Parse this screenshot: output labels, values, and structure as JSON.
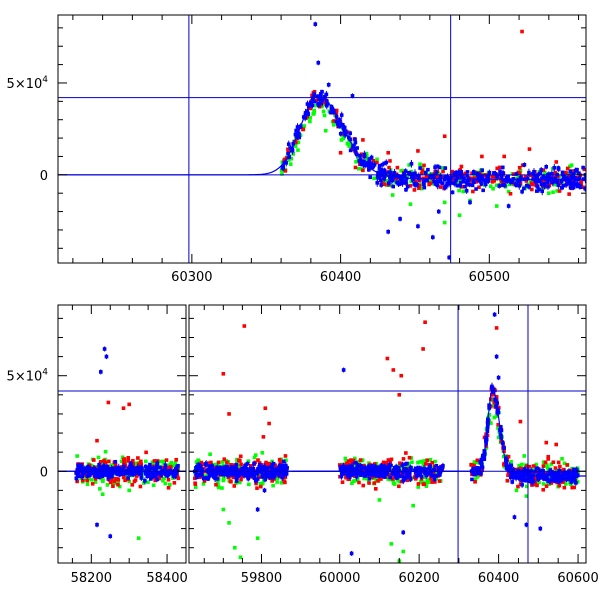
{
  "colors": {
    "red": "#ff0000",
    "green": "#00ff00",
    "blue": "#0000ff",
    "reference_lines": "#0000cc",
    "frame": "#000000"
  },
  "chart_data": [
    {
      "type": "scatter",
      "panel": "top",
      "title": "",
      "xlabel": "",
      "ylabel": "",
      "xlim": [
        60210,
        60565
      ],
      "ylim": [
        -48000,
        87000
      ],
      "x_ticks": [
        60300,
        60400,
        60500
      ],
      "y_ticks": [
        {
          "value": 0,
          "label": "0"
        },
        {
          "value": 50000,
          "label": "5×10",
          "exp": "4"
        }
      ],
      "reference_lines": {
        "vertical": [
          60298,
          60474
        ],
        "horizontal": [
          0,
          42000
        ]
      },
      "model_curve": {
        "peak_x": 60385,
        "peak_y": 43000,
        "rise_width": 12,
        "fall_width": 17,
        "tail": -2500
      },
      "series": [
        {
          "color": "red",
          "x_range": [
            60362,
            60565
          ],
          "points": [
            [
              60400,
              12000
            ],
            [
              60410,
              4000
            ],
            [
              60415,
              19000
            ],
            [
              60432,
              12000
            ],
            [
              60447,
              -6000
            ],
            [
              60452,
              13000
            ],
            [
              60470,
              21000
            ],
            [
              60475,
              -3000
            ],
            [
              60522,
              78000
            ],
            [
              60527,
              14000
            ],
            [
              60510,
              10000
            ],
            [
              60495,
              10000
            ],
            [
              60545,
              7000
            ]
          ]
        },
        {
          "color": "green",
          "x_range": [
            60360,
            60560
          ],
          "points": [
            [
              60365,
              12000
            ],
            [
              60380,
              38000
            ],
            [
              60390,
              24000
            ],
            [
              60395,
              35000
            ],
            [
              60435,
              -11000
            ],
            [
              60447,
              -16000
            ],
            [
              60470,
              -15000
            ],
            [
              60480,
              -22000
            ],
            [
              60487,
              -14000
            ],
            [
              60505,
              -17000
            ],
            [
              60470,
              -26000
            ],
            [
              60540,
              -10000
            ],
            [
              60545,
              -4000
            ]
          ]
        },
        {
          "color": "blue",
          "x_range": [
            60360,
            60565
          ],
          "points": [
            [
              60383,
              82000
            ],
            [
              60385,
              61000
            ],
            [
              60392,
              49000
            ],
            [
              60408,
              43000
            ],
            [
              60432,
              -31000
            ],
            [
              60440,
              -24000
            ],
            [
              60452,
              -28000
            ],
            [
              60462,
              -34000
            ],
            [
              60466,
              -20000
            ],
            [
              60473,
              -45000
            ],
            [
              60487,
              -15000
            ],
            [
              60513,
              -17000
            ]
          ]
        }
      ]
    },
    {
      "type": "scatter",
      "panel": "bottom",
      "title": "",
      "xlabel": "",
      "ylabel": "",
      "x_axis_broken": true,
      "segments": [
        {
          "xlim": [
            58112,
            58450
          ],
          "x_ticks": [
            58200,
            58400
          ]
        },
        {
          "xlim": [
            59610,
            59880
          ],
          "x_ticks": [
            59800
          ]
        },
        {
          "xlim": [
            59880,
            60620
          ],
          "x_ticks": [
            60000,
            60200,
            60400,
            60600
          ]
        }
      ],
      "ylim": [
        -48000,
        87000
      ],
      "y_ticks": [
        {
          "value": 0,
          "label": "0"
        },
        {
          "value": 50000,
          "label": "5×10",
          "exp": "4"
        }
      ],
      "reference_lines": {
        "vertical": [
          60298,
          60474
        ],
        "horizontal": [
          0,
          42000
        ]
      },
      "data_groups_x_ranges": [
        [
          58160,
          58430
        ],
        [
          59625,
          59868
        ],
        [
          60000,
          60260
        ],
        [
          60330,
          60600
        ]
      ],
      "series": [
        {
          "color": "red",
          "points": [
            [
              58245,
              36000
            ],
            [
              58285,
              33000
            ],
            [
              58300,
              35000
            ],
            [
              58215,
              16000
            ],
            [
              59700,
              51000
            ],
            [
              59715,
              30000
            ],
            [
              59755,
              76000
            ],
            [
              59805,
              18000
            ],
            [
              59810,
              33000
            ],
            [
              59820,
              25000
            ],
            [
              60120,
              59000
            ],
            [
              60135,
              53000
            ],
            [
              60150,
              40000
            ],
            [
              60210,
              64000
            ],
            [
              60215,
              78000
            ],
            [
              60155,
              50000
            ],
            [
              60395,
              75000
            ],
            [
              60455,
              26000
            ],
            [
              60520,
              15000
            ],
            [
              60545,
              14000
            ]
          ]
        },
        {
          "color": "green",
          "points": [
            [
              58230,
              -12000
            ],
            [
              58275,
              -8000
            ],
            [
              58300,
              -10000
            ],
            [
              58325,
              -35000
            ],
            [
              59700,
              -20000
            ],
            [
              59715,
              -27000
            ],
            [
              59730,
              -40000
            ],
            [
              59745,
              -45000
            ],
            [
              59790,
              -35000
            ],
            [
              60100,
              -15000
            ],
            [
              60130,
              -38000
            ],
            [
              60150,
              -47000
            ],
            [
              60160,
              -42000
            ],
            [
              60185,
              -18000
            ],
            [
              60445,
              -10000
            ],
            [
              60470,
              -13000
            ],
            [
              60530,
              -5000
            ]
          ]
        },
        {
          "color": "blue",
          "points": [
            [
              58225,
              52000
            ],
            [
              58235,
              64000
            ],
            [
              58240,
              60000
            ],
            [
              58215,
              -28000
            ],
            [
              58250,
              -34000
            ],
            [
              59735,
              -5000
            ],
            [
              59790,
              -20000
            ],
            [
              59808,
              -10000
            ],
            [
              60010,
              53000
            ],
            [
              60030,
              -43000
            ],
            [
              60160,
              -32000
            ],
            [
              60390,
              82000
            ],
            [
              60395,
              60000
            ],
            [
              60400,
              49000
            ],
            [
              60440,
              -24000
            ],
            [
              60470,
              -28000
            ],
            [
              60505,
              -30000
            ]
          ]
        }
      ]
    }
  ]
}
